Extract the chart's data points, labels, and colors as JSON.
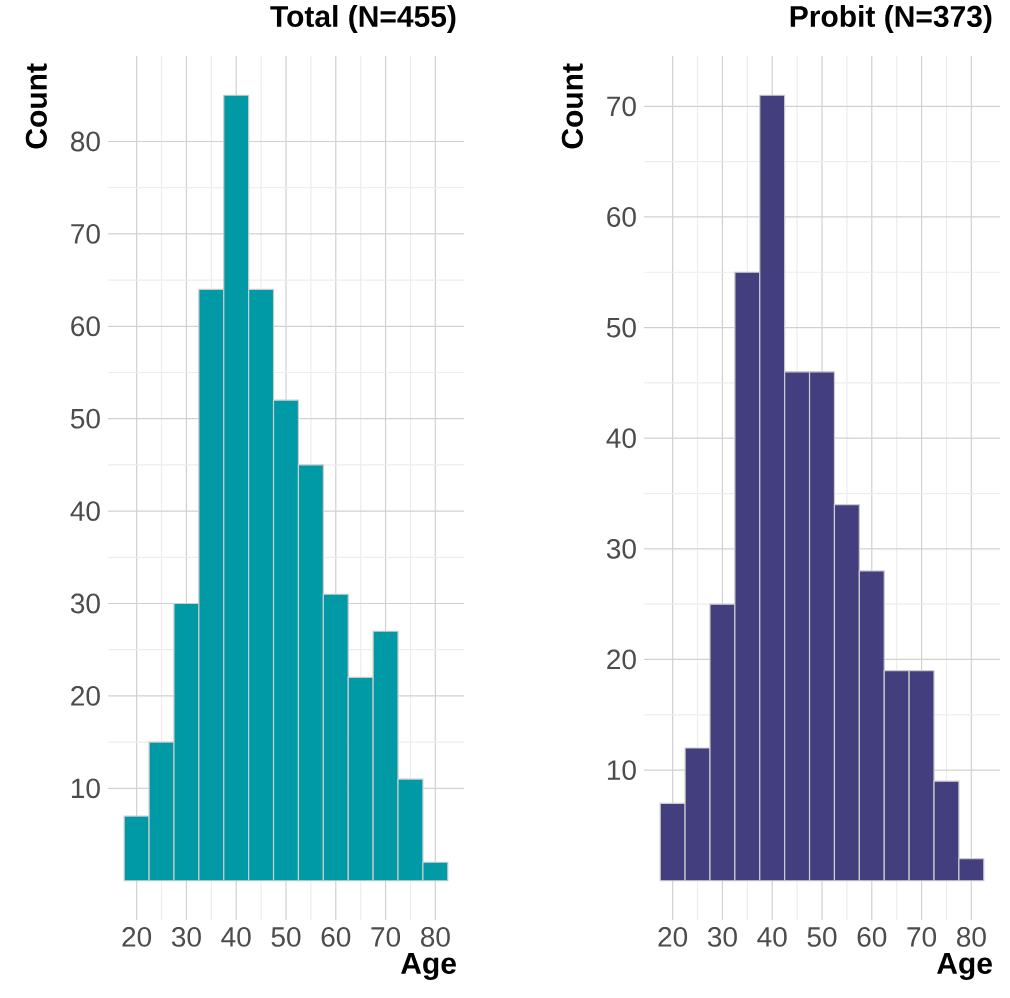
{
  "chart_data": [
    {
      "type": "histogram",
      "title": "Total (N=455)",
      "xlabel": "Age",
      "ylabel": "Count",
      "bins": [
        17.5,
        22.5,
        27.5,
        32.5,
        37.5,
        42.5,
        47.5,
        52.5,
        57.5,
        62.5,
        67.5,
        72.5,
        77.5,
        82.5
      ],
      "values": [
        7,
        15,
        30,
        64,
        85,
        64,
        52,
        45,
        31,
        22,
        27,
        11,
        2
      ],
      "color": "#0099a6",
      "xlim": [
        14.25,
        85.75
      ],
      "ylim": [
        -4.25,
        89.25
      ],
      "xticks": [
        20,
        30,
        40,
        50,
        60,
        70,
        80
      ],
      "yticks": [
        10,
        20,
        30,
        40,
        50,
        60,
        70,
        80
      ],
      "grid": true
    },
    {
      "type": "histogram",
      "title": "Probit (N=373)",
      "xlabel": "Age",
      "ylabel": "Count",
      "bins": [
        17.5,
        22.5,
        27.5,
        32.5,
        37.5,
        42.5,
        47.5,
        52.5,
        57.5,
        62.5,
        67.5,
        72.5,
        77.5,
        82.5
      ],
      "values": [
        7,
        12,
        25,
        55,
        71,
        46,
        46,
        34,
        28,
        19,
        19,
        9,
        2
      ],
      "color": "#433e7e",
      "xlim": [
        14.25,
        85.75
      ],
      "ylim": [
        -3.55,
        74.55
      ],
      "xticks": [
        20,
        30,
        40,
        50,
        60,
        70,
        80
      ],
      "yticks": [
        10,
        20,
        30,
        40,
        50,
        60,
        70
      ],
      "grid": true
    }
  ]
}
